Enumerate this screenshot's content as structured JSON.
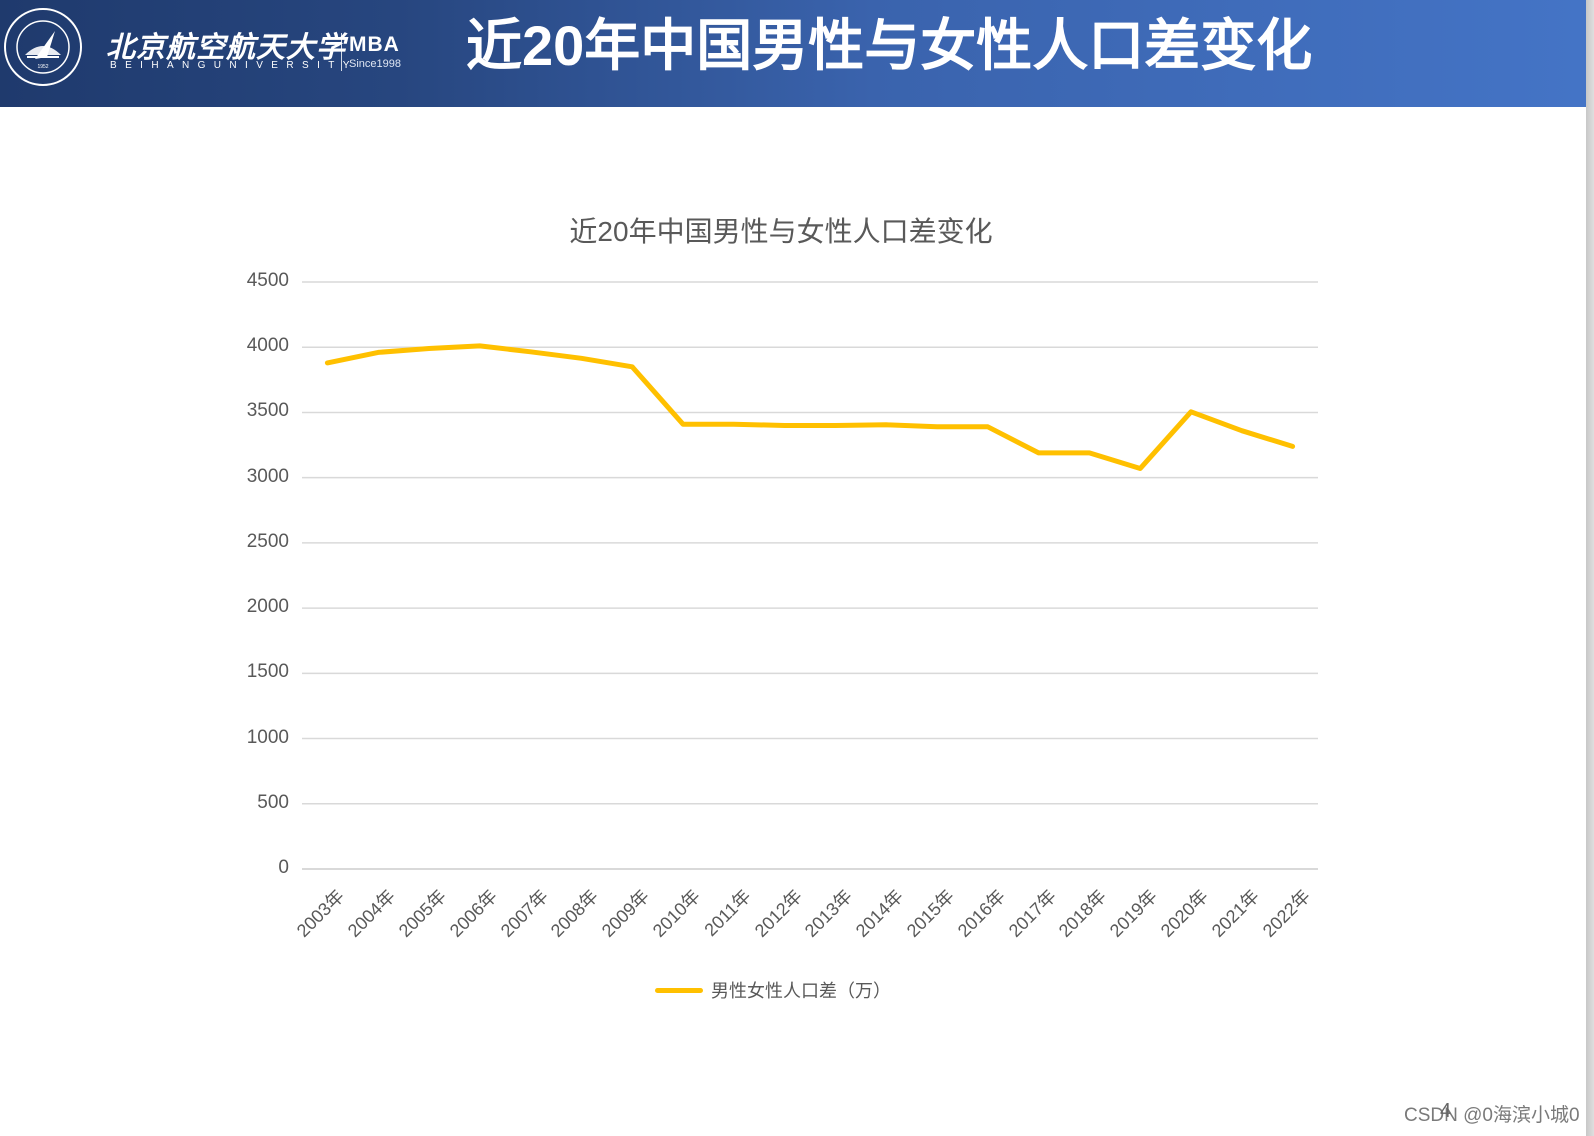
{
  "header": {
    "school_name_cn": "北京航空航天大学",
    "school_name_en": "BEIHANGUNIVERSITY",
    "program": "MBA",
    "since": "Since1998",
    "slide_title": "近20年中国男性与女性人口差变化",
    "seal_year": "1952",
    "colors": {
      "gradient_start": "#1f3a6d",
      "gradient_end": "#4474c6"
    }
  },
  "chart_data": {
    "type": "line",
    "title": "近20年中国男性与女性人口差变化",
    "xlabel": "",
    "ylabel": "",
    "categories": [
      "2003年",
      "2004年",
      "2005年",
      "2006年",
      "2007年",
      "2008年",
      "2009年",
      "2010年",
      "2011年",
      "2012年",
      "2013年",
      "2014年",
      "2015年",
      "2016年",
      "2017年",
      "2018年",
      "2019年",
      "2020年",
      "2021年",
      "2022年"
    ],
    "series": [
      {
        "name": "男性女性人口差（万）",
        "color": "#ffc000",
        "values": [
          3880,
          3960,
          3990,
          4010,
          3965,
          3915,
          3850,
          3410,
          3410,
          3400,
          3400,
          3405,
          3390,
          3390,
          3190,
          3190,
          3070,
          3505,
          3360,
          3240
        ]
      }
    ],
    "ylim": [
      0,
      4500
    ],
    "yticks": [
      0,
      500,
      1000,
      1500,
      2000,
      2500,
      3000,
      3500,
      4000,
      4500
    ],
    "grid": true,
    "legend_position": "bottom"
  },
  "legend": {
    "label": "男性女性人口差（万）"
  },
  "footer": {
    "page_number": "4",
    "watermark": "CSDN @0海滨小城0"
  }
}
